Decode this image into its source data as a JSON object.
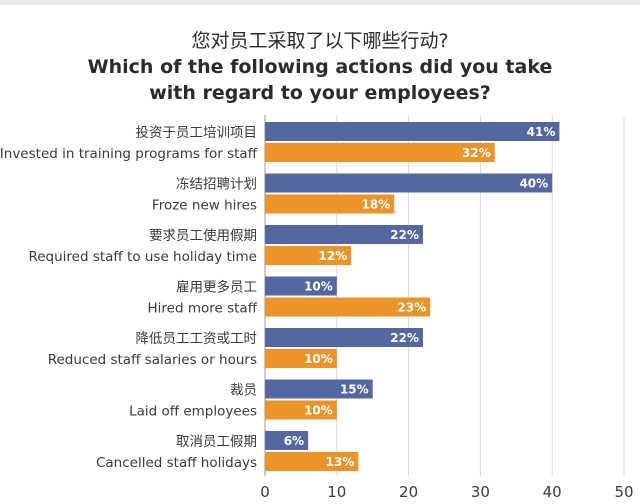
{
  "title": {
    "cn": "您对员工采取了以下哪些行动?",
    "en": "Which of the following actions did you take\nwith regard to your employees?"
  },
  "colors": {
    "series_a": "#5567a1",
    "series_b": "#ec9329",
    "grid": "#d9d9d9",
    "axis": "#9a9a9a"
  },
  "chart_data": {
    "type": "bar",
    "orientation": "horizontal",
    "categories": [
      {
        "cn": "投资于员工培训项目",
        "en": "Invested in training programs for staff"
      },
      {
        "cn": "冻结招聘计划",
        "en": "Froze new hires"
      },
      {
        "cn": "要求员工使用假期",
        "en": "Required staff to use holiday time"
      },
      {
        "cn": "雇用更多员工",
        "en": "Hired more staff"
      },
      {
        "cn": "降低员工工资或工时",
        "en": "Reduced staff salaries or hours"
      },
      {
        "cn": "裁员",
        "en": "Laid off employees"
      },
      {
        "cn": "取消员工假期",
        "en": "Cancelled staff holidays"
      }
    ],
    "series": [
      {
        "values": [
          41,
          40,
          22,
          10,
          22,
          15,
          6
        ],
        "value_labels": [
          "41%",
          "40%",
          "22%",
          "10%",
          "22%",
          "15%",
          "6%"
        ]
      },
      {
        "values": [
          32,
          18,
          12,
          23,
          10,
          10,
          13
        ],
        "value_labels": [
          "32%",
          "18%",
          "12%",
          "23%",
          "10%",
          "10%",
          "13%"
        ]
      }
    ],
    "xlim": [
      0,
      50
    ],
    "xticks": [
      "0",
      "10",
      "20",
      "30",
      "40",
      "50"
    ],
    "grid": true,
    "legend": "none"
  }
}
